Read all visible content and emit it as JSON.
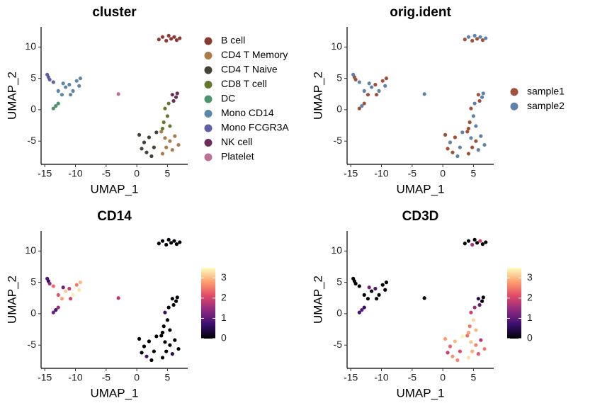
{
  "chart_data": [
    {
      "type": "scatter",
      "title": "cluster",
      "xlabel": "UMAP_1",
      "ylabel": "UMAP_2",
      "xlim": [
        -15.6,
        8.3
      ],
      "ylim": [
        -8.7,
        13.2
      ],
      "xticks": [
        -15,
        -10,
        -5,
        0,
        5
      ],
      "yticks": [
        -5,
        0,
        5,
        10
      ],
      "legend": "right",
      "series": [
        {
          "name": "B cell",
          "color": "#8b3a33",
          "x": [
            3.6,
            4.2,
            4.8,
            5.2,
            5.6,
            6.1,
            6.5,
            7.0
          ],
          "y": [
            11.2,
            11.6,
            11.0,
            11.8,
            11.3,
            11.6,
            11.1,
            11.4
          ]
        },
        {
          "name": "CD4 T Memory",
          "color": "#a97c4a",
          "x": [
            4.0,
            4.6,
            5.4,
            6.2,
            4.8,
            5.8,
            4.2,
            6.8
          ],
          "y": [
            -3.5,
            -4.5,
            -5.0,
            -4.2,
            -6.0,
            -6.4,
            -7.0,
            -5.6
          ]
        },
        {
          "name": "CD4 T Naive",
          "color": "#454238",
          "x": [
            0.4,
            1.2,
            2.0,
            2.8,
            1.6,
            3.2,
            0.8,
            2.4
          ],
          "y": [
            -4.0,
            -5.2,
            -4.4,
            -6.0,
            -6.8,
            -3.6,
            -6.2,
            -7.4
          ]
        },
        {
          "name": "CD8 T cell",
          "color": "#66782e",
          "x": [
            4.4,
            5.0,
            4.6,
            5.2,
            4.2,
            5.4
          ],
          "y": [
            -2.0,
            -1.0,
            0.2,
            1.0,
            -3.0,
            -2.6
          ]
        },
        {
          "name": "DC",
          "color": "#4e9370",
          "x": [
            -13.6,
            -13.2,
            -12.8
          ],
          "y": [
            0.2,
            0.6,
            1.0
          ]
        },
        {
          "name": "Mono CD14",
          "color": "#5d87a6",
          "x": [
            -12.8,
            -12.2,
            -11.6,
            -11.0,
            -10.4,
            -9.8,
            -9.4,
            -10.8,
            -12.0,
            -9.2
          ],
          "y": [
            3.0,
            2.4,
            3.6,
            4.0,
            3.0,
            4.6,
            3.8,
            2.4,
            4.2,
            5.0
          ]
        },
        {
          "name": "Mono FCGR3A",
          "color": "#625ea4",
          "x": [
            -14.6,
            -14.2,
            -13.6,
            -14.4
          ],
          "y": [
            5.6,
            4.8,
            4.4,
            5.2
          ]
        },
        {
          "name": "NK cell",
          "color": "#6e2c59",
          "x": [
            5.8,
            6.4,
            6.0,
            6.6
          ],
          "y": [
            2.4,
            2.0,
            1.4,
            2.6
          ]
        },
        {
          "name": "Platelet",
          "color": "#c06f98",
          "x": [
            -3.0
          ],
          "y": [
            2.5
          ]
        }
      ]
    },
    {
      "type": "scatter",
      "title": "orig.ident",
      "xlabel": "UMAP_1",
      "ylabel": "UMAP_2",
      "xlim": [
        -15.6,
        8.3
      ],
      "ylim": [
        -8.7,
        13.2
      ],
      "xticks": [
        -15,
        -10,
        -5,
        0,
        5
      ],
      "yticks": [
        -5,
        0,
        5,
        10
      ],
      "legend": "right",
      "series": [
        {
          "name": "sample1",
          "color": "#a0513a",
          "x": [
            3.6,
            4.8,
            5.6,
            6.5,
            4.0,
            5.4,
            4.8,
            4.2,
            0.4,
            2.0,
            1.6,
            0.8,
            4.4,
            4.6,
            4.2,
            5.8,
            6.0,
            -13.6,
            -12.8,
            -12.2,
            -11.0,
            -9.8,
            -10.8,
            -9.2,
            -14.2,
            -14.4
          ],
          "y": [
            11.2,
            11.0,
            11.3,
            11.1,
            -3.5,
            -5.0,
            -6.0,
            -7.0,
            -4.0,
            -4.4,
            -6.8,
            -6.2,
            -2.0,
            0.2,
            -3.0,
            2.4,
            1.4,
            0.2,
            1.0,
            2.4,
            4.0,
            4.6,
            2.4,
            5.0,
            4.8,
            5.2
          ]
        },
        {
          "name": "sample2",
          "color": "#5f82ac",
          "x": [
            4.2,
            5.2,
            6.1,
            7.0,
            4.6,
            6.2,
            5.8,
            6.8,
            1.2,
            2.8,
            3.2,
            2.4,
            5.0,
            5.2,
            5.4,
            6.4,
            6.6,
            -13.2,
            -12.8,
            -11.6,
            -10.4,
            -9.4,
            -12.0,
            -14.6,
            -13.6,
            -3.0
          ],
          "y": [
            11.6,
            11.8,
            11.6,
            11.4,
            -4.5,
            -4.2,
            -6.4,
            -5.6,
            -5.2,
            -6.0,
            -3.6,
            -7.4,
            -1.0,
            1.0,
            -2.6,
            2.0,
            2.6,
            0.6,
            3.0,
            3.6,
            3.0,
            3.8,
            4.2,
            5.6,
            4.4,
            2.5
          ]
        }
      ]
    },
    {
      "type": "feature",
      "title": "CD14",
      "xlabel": "UMAP_1",
      "ylabel": "UMAP_2",
      "xlim": [
        -15.6,
        8.3
      ],
      "ylim": [
        -8.7,
        13.2
      ],
      "xticks": [
        -15,
        -10,
        -5,
        0,
        5
      ],
      "yticks": [
        -5,
        0,
        5,
        10
      ],
      "colormap": [
        "#000004",
        "#3b0f70",
        "#8c2981",
        "#de4968",
        "#fe9f6d",
        "#fcfdbf"
      ],
      "clim": [
        0,
        3.5
      ],
      "cticks": [
        0,
        1,
        2,
        3
      ],
      "x": [
        3.6,
        4.2,
        4.8,
        5.2,
        5.6,
        6.1,
        6.5,
        7.0,
        4.0,
        4.6,
        5.4,
        6.2,
        4.8,
        5.8,
        4.2,
        6.8,
        0.4,
        1.2,
        2.0,
        2.8,
        1.6,
        3.2,
        0.8,
        2.4,
        4.4,
        5.0,
        4.6,
        5.2,
        4.2,
        5.4,
        5.8,
        6.4,
        6.0,
        6.6,
        -13.6,
        -13.2,
        -12.8,
        -12.8,
        -12.2,
        -11.6,
        -11.0,
        -10.4,
        -9.8,
        -9.4,
        -10.8,
        -12.0,
        -9.2,
        -14.6,
        -14.2,
        -13.6,
        -14.4,
        -3.0
      ],
      "y": [
        11.2,
        11.6,
        11.0,
        11.8,
        11.3,
        11.6,
        11.1,
        11.4,
        -3.5,
        -4.5,
        -5.0,
        -4.2,
        -6.0,
        -6.4,
        -7.0,
        -5.6,
        -4.0,
        -5.2,
        -4.4,
        -6.0,
        -6.8,
        -3.6,
        -6.2,
        -7.4,
        -2.0,
        -1.0,
        0.2,
        1.0,
        -3.0,
        -2.6,
        2.4,
        2.0,
        1.4,
        2.6,
        0.2,
        0.6,
        1.0,
        3.0,
        2.4,
        3.6,
        4.0,
        3.0,
        4.6,
        3.8,
        2.4,
        4.2,
        5.0,
        5.6,
        4.8,
        4.4,
        5.2,
        2.5
      ],
      "values": [
        0,
        0,
        0,
        0,
        0,
        0,
        0,
        0,
        0,
        0,
        0,
        0,
        0,
        0.5,
        0,
        0,
        0,
        0,
        0,
        0,
        0.8,
        0,
        0,
        0,
        0,
        0,
        0.6,
        0,
        0,
        0,
        0,
        0,
        0,
        0,
        1.2,
        0.8,
        1.5,
        2.2,
        2.8,
        3.1,
        1.9,
        3.4,
        2.5,
        3.3,
        2.0,
        1.2,
        3.0,
        0.9,
        1.4,
        2.4,
        0.6,
        1.8
      ]
    },
    {
      "type": "feature",
      "title": "CD3D",
      "xlabel": "UMAP_1",
      "ylabel": "UMAP_2",
      "xlim": [
        -15.6,
        8.3
      ],
      "ylim": [
        -8.7,
        13.2
      ],
      "xticks": [
        -15,
        -10,
        -5,
        0,
        5
      ],
      "yticks": [
        -5,
        0,
        5,
        10
      ],
      "colormap": [
        "#000004",
        "#3b0f70",
        "#8c2981",
        "#de4968",
        "#fe9f6d",
        "#fcfdbf"
      ],
      "clim": [
        0,
        3.5
      ],
      "cticks": [
        0,
        1,
        2,
        3
      ],
      "x": [
        3.6,
        4.2,
        4.8,
        5.2,
        5.6,
        6.1,
        6.5,
        7.0,
        4.0,
        4.6,
        5.4,
        6.2,
        4.8,
        5.8,
        4.2,
        6.8,
        0.4,
        1.2,
        2.0,
        2.8,
        1.6,
        3.2,
        0.8,
        2.4,
        4.4,
        5.0,
        4.6,
        5.2,
        4.2,
        5.4,
        5.8,
        6.4,
        6.0,
        6.6,
        -13.6,
        -13.2,
        -12.8,
        -12.8,
        -12.2,
        -11.6,
        -11.0,
        -10.4,
        -9.8,
        -9.4,
        -10.8,
        -12.0,
        -9.2,
        -14.6,
        -14.2,
        -13.6,
        -14.4,
        -3.0
      ],
      "y": [
        11.2,
        11.6,
        11.0,
        11.8,
        11.3,
        11.6,
        11.1,
        11.4,
        -3.5,
        -4.5,
        -5.0,
        -4.2,
        -6.0,
        -6.4,
        -7.0,
        -5.6,
        -4.0,
        -5.2,
        -4.4,
        -6.0,
        -6.8,
        -3.6,
        -6.2,
        -7.4,
        -2.0,
        -1.0,
        0.2,
        1.0,
        -3.0,
        -2.6,
        2.4,
        2.0,
        1.4,
        2.6,
        0.2,
        0.6,
        1.0,
        3.0,
        2.4,
        3.6,
        4.0,
        3.0,
        4.6,
        3.8,
        2.4,
        4.2,
        5.0,
        5.6,
        4.8,
        4.4,
        5.2,
        2.5
      ],
      "values": [
        0,
        0,
        1.6,
        0,
        0,
        2.0,
        0,
        0,
        2.4,
        3.1,
        2.6,
        1.8,
        2.9,
        2.2,
        3.3,
        2.5,
        2.8,
        2.3,
        3.0,
        2.1,
        2.7,
        3.4,
        1.9,
        2.6,
        2.5,
        3.2,
        2.0,
        1.5,
        2.8,
        3.0,
        0.5,
        0,
        1.0,
        0,
        0.8,
        1.0,
        0.6,
        0,
        0,
        0,
        0.9,
        0,
        0,
        0,
        0,
        1.2,
        0,
        0,
        0,
        0,
        0,
        0
      ]
    }
  ]
}
